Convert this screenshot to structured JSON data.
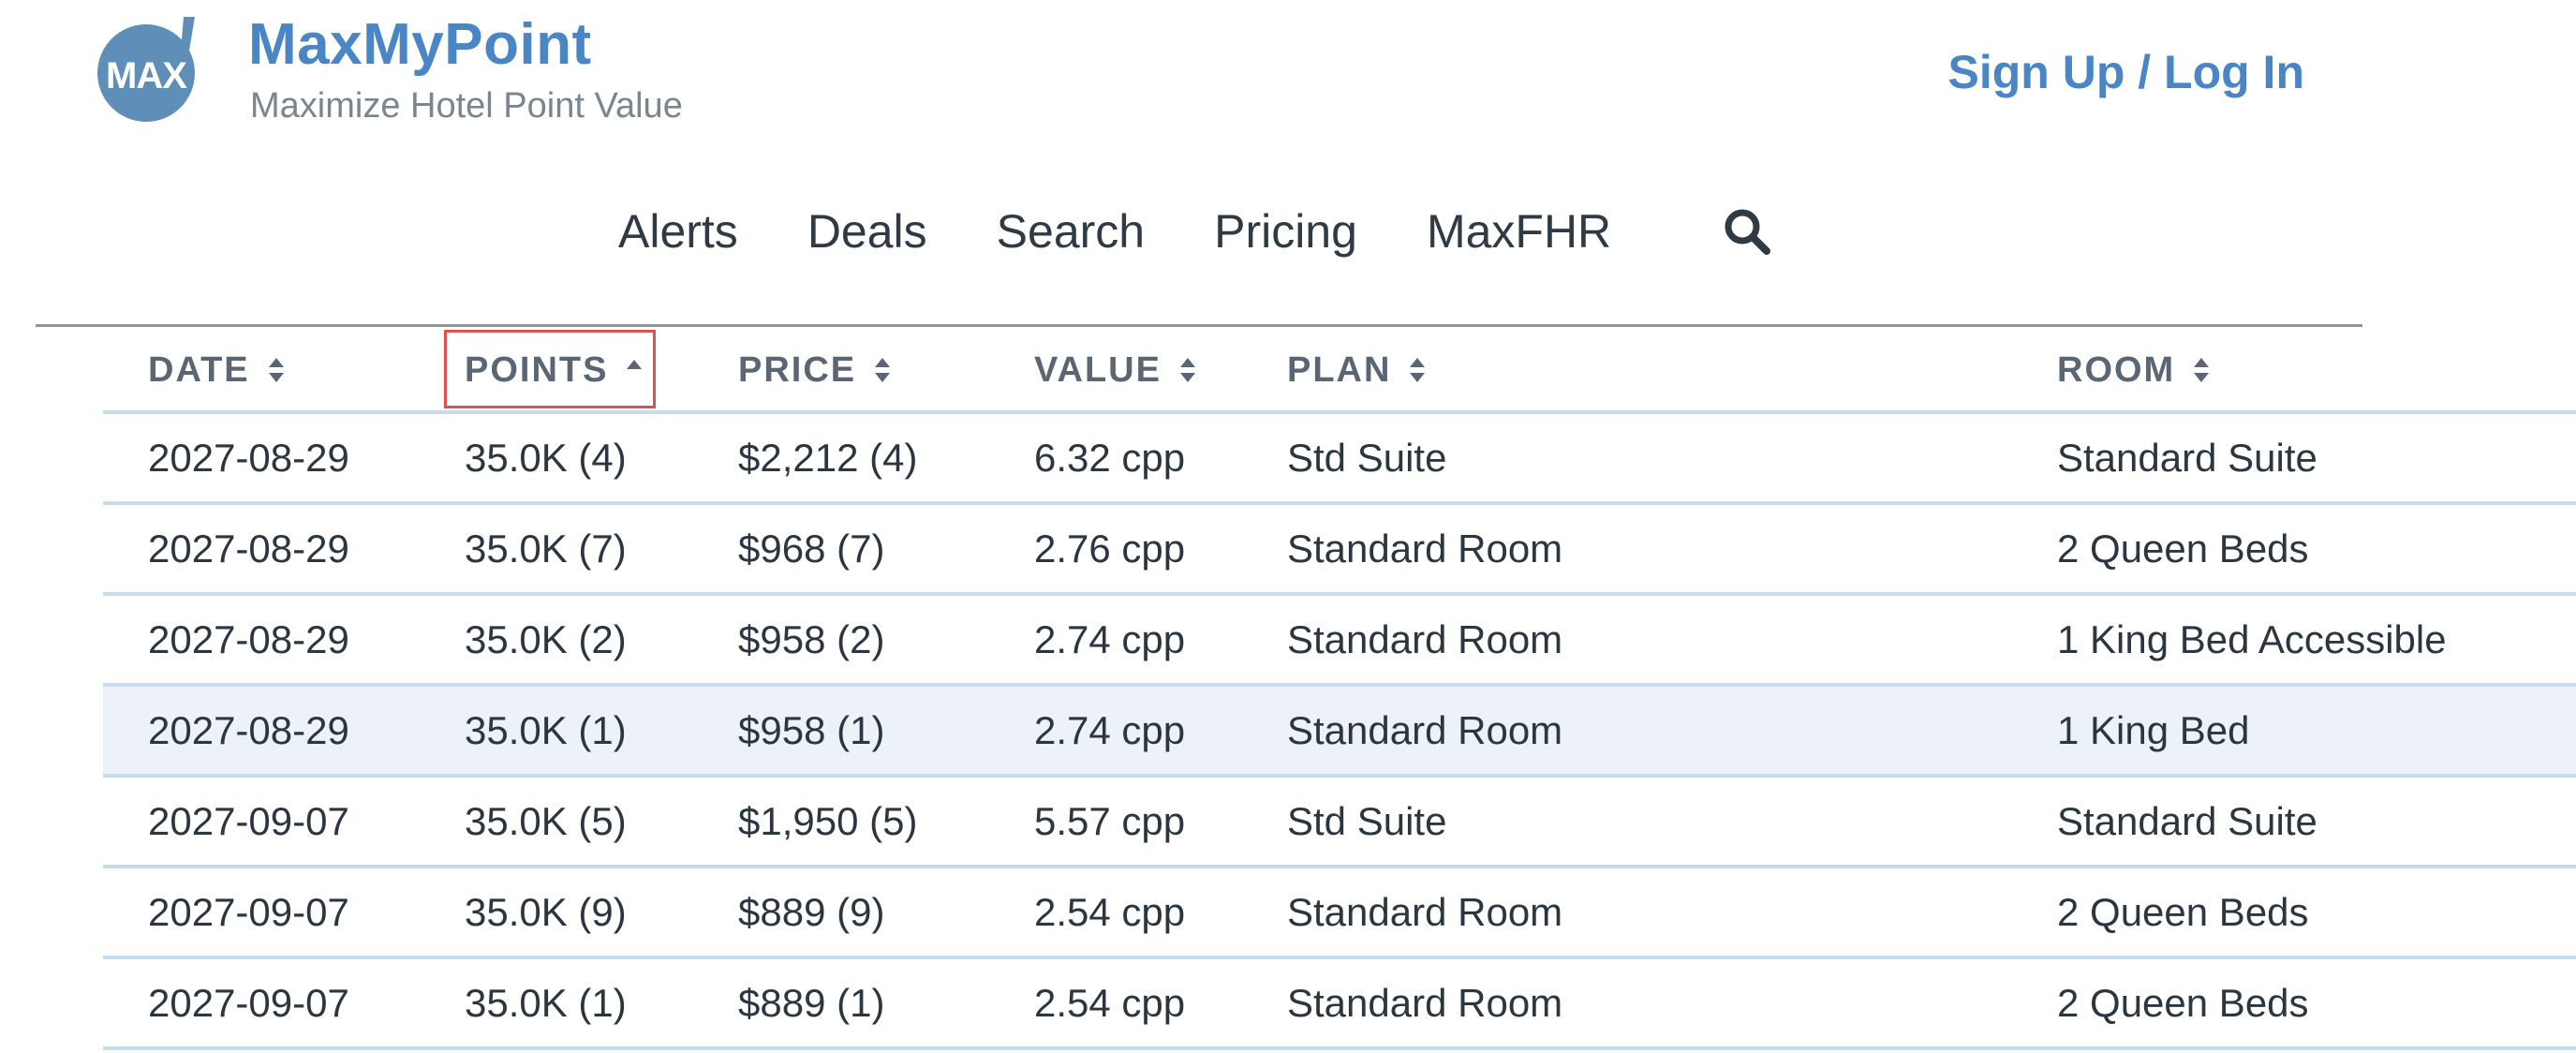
{
  "header": {
    "brand_title": "MaxMyPoint",
    "brand_subtitle": "Maximize Hotel Point Value",
    "logo_text": "MAX",
    "auth_link": "Sign Up / Log In"
  },
  "nav": {
    "items": [
      {
        "label": "Alerts"
      },
      {
        "label": "Deals"
      },
      {
        "label": "Search"
      },
      {
        "label": "Pricing"
      },
      {
        "label": "MaxFHR"
      }
    ],
    "search_icon": "search-icon"
  },
  "colors": {
    "brand": "#4a86c5",
    "sort_highlight": "#d9534f",
    "row_border": "#c6dcec",
    "highlight_row": "#edf2f8"
  },
  "table": {
    "sorted_column": "POINTS",
    "sort_direction": "ascending",
    "columns": [
      {
        "label": "DATE"
      },
      {
        "label": "POINTS"
      },
      {
        "label": "PRICE"
      },
      {
        "label": "VALUE"
      },
      {
        "label": "PLAN"
      },
      {
        "label": "ROOM"
      }
    ],
    "rows": [
      {
        "date": "2027-08-29",
        "points": "35.0K (4)",
        "price": "$2,212 (4)",
        "value": "6.32 cpp",
        "plan": "Std Suite",
        "room": "Standard Suite"
      },
      {
        "date": "2027-08-29",
        "points": "35.0K (7)",
        "price": "$968 (7)",
        "value": "2.76 cpp",
        "plan": "Standard Room",
        "room": "2 Queen Beds"
      },
      {
        "date": "2027-08-29",
        "points": "35.0K (2)",
        "price": "$958 (2)",
        "value": "2.74 cpp",
        "plan": "Standard Room",
        "room": "1 King Bed Accessible"
      },
      {
        "date": "2027-08-29",
        "points": "35.0K (1)",
        "price": "$958 (1)",
        "value": "2.74 cpp",
        "plan": "Standard Room",
        "room": "1 King Bed",
        "highlighted": true
      },
      {
        "date": "2027-09-07",
        "points": "35.0K (5)",
        "price": "$1,950 (5)",
        "value": "5.57 cpp",
        "plan": "Std Suite",
        "room": "Standard Suite"
      },
      {
        "date": "2027-09-07",
        "points": "35.0K (9)",
        "price": "$889 (9)",
        "value": "2.54 cpp",
        "plan": "Standard Room",
        "room": "2 Queen Beds"
      },
      {
        "date": "2027-09-07",
        "points": "35.0K (1)",
        "price": "$889 (1)",
        "value": "2.54 cpp",
        "plan": "Standard Room",
        "room": "2 Queen Beds"
      }
    ]
  }
}
